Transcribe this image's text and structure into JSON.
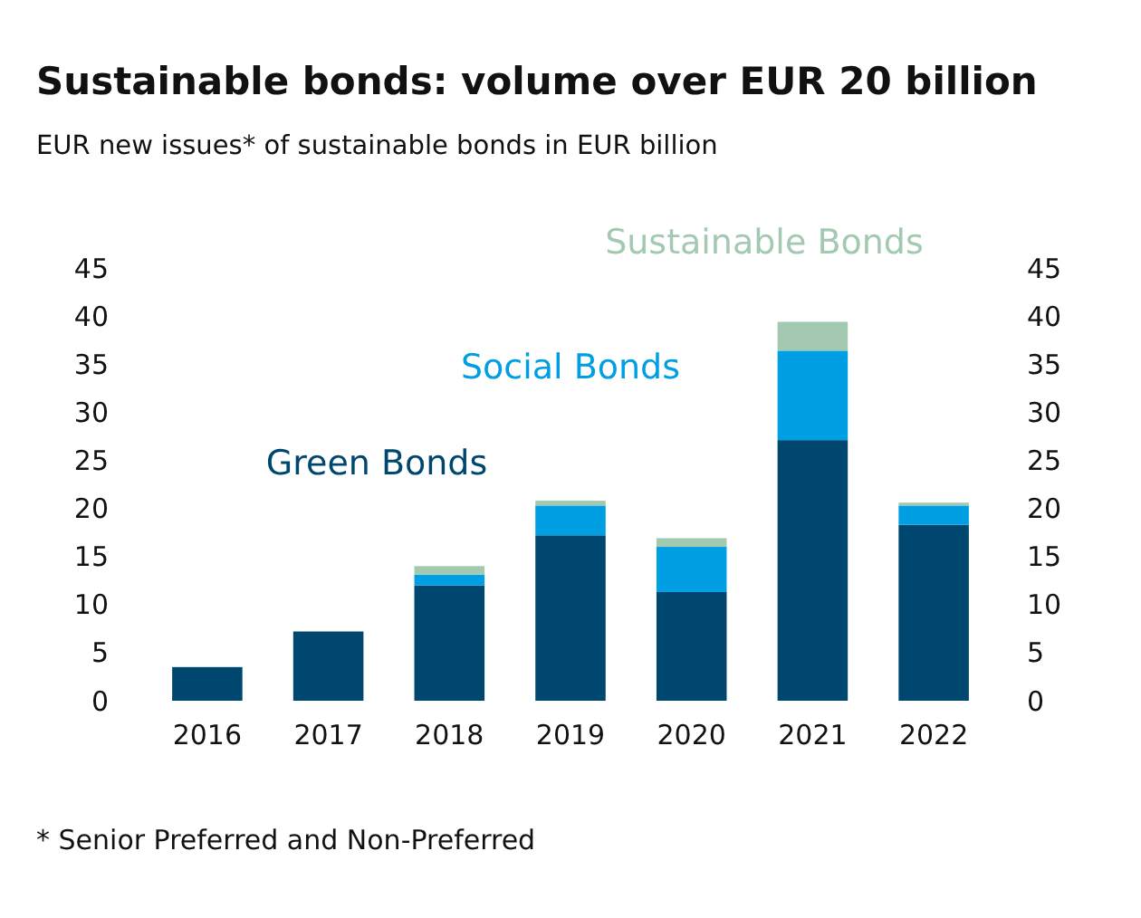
{
  "chart_data": {
    "type": "bar",
    "title": "Sustainable bonds: volume over EUR 20 billion",
    "subtitle": "EUR new issues* of sustainable bonds in EUR billion",
    "categories": [
      "2016",
      "2017",
      "2018",
      "2019",
      "2020",
      "2021",
      "2022"
    ],
    "stacked": true,
    "series": [
      {
        "name": "Green Bonds",
        "color": "#00476f",
        "values": [
          3.5,
          7.2,
          12.0,
          17.2,
          11.3,
          27.1,
          18.3
        ]
      },
      {
        "name": "Social Bonds",
        "color": "#009fe3",
        "values": [
          0,
          0,
          1.1,
          3.1,
          4.7,
          9.3,
          2.0
        ]
      },
      {
        "name": "Sustainable Bonds",
        "color": "#a3c9b1",
        "values": [
          0,
          0,
          0.9,
          0.5,
          0.9,
          3.0,
          0.3
        ]
      }
    ],
    "ylim": [
      0,
      45
    ],
    "yticks": [
      0,
      5,
      10,
      15,
      20,
      25,
      30,
      35,
      40,
      45
    ],
    "y2lim": [
      0,
      45
    ],
    "y2ticks": [
      0,
      5,
      10,
      15,
      20,
      25,
      30,
      35,
      40,
      45
    ],
    "grid": false,
    "annotations": [
      "* Senior Preferred and Non-Preferred"
    ]
  }
}
